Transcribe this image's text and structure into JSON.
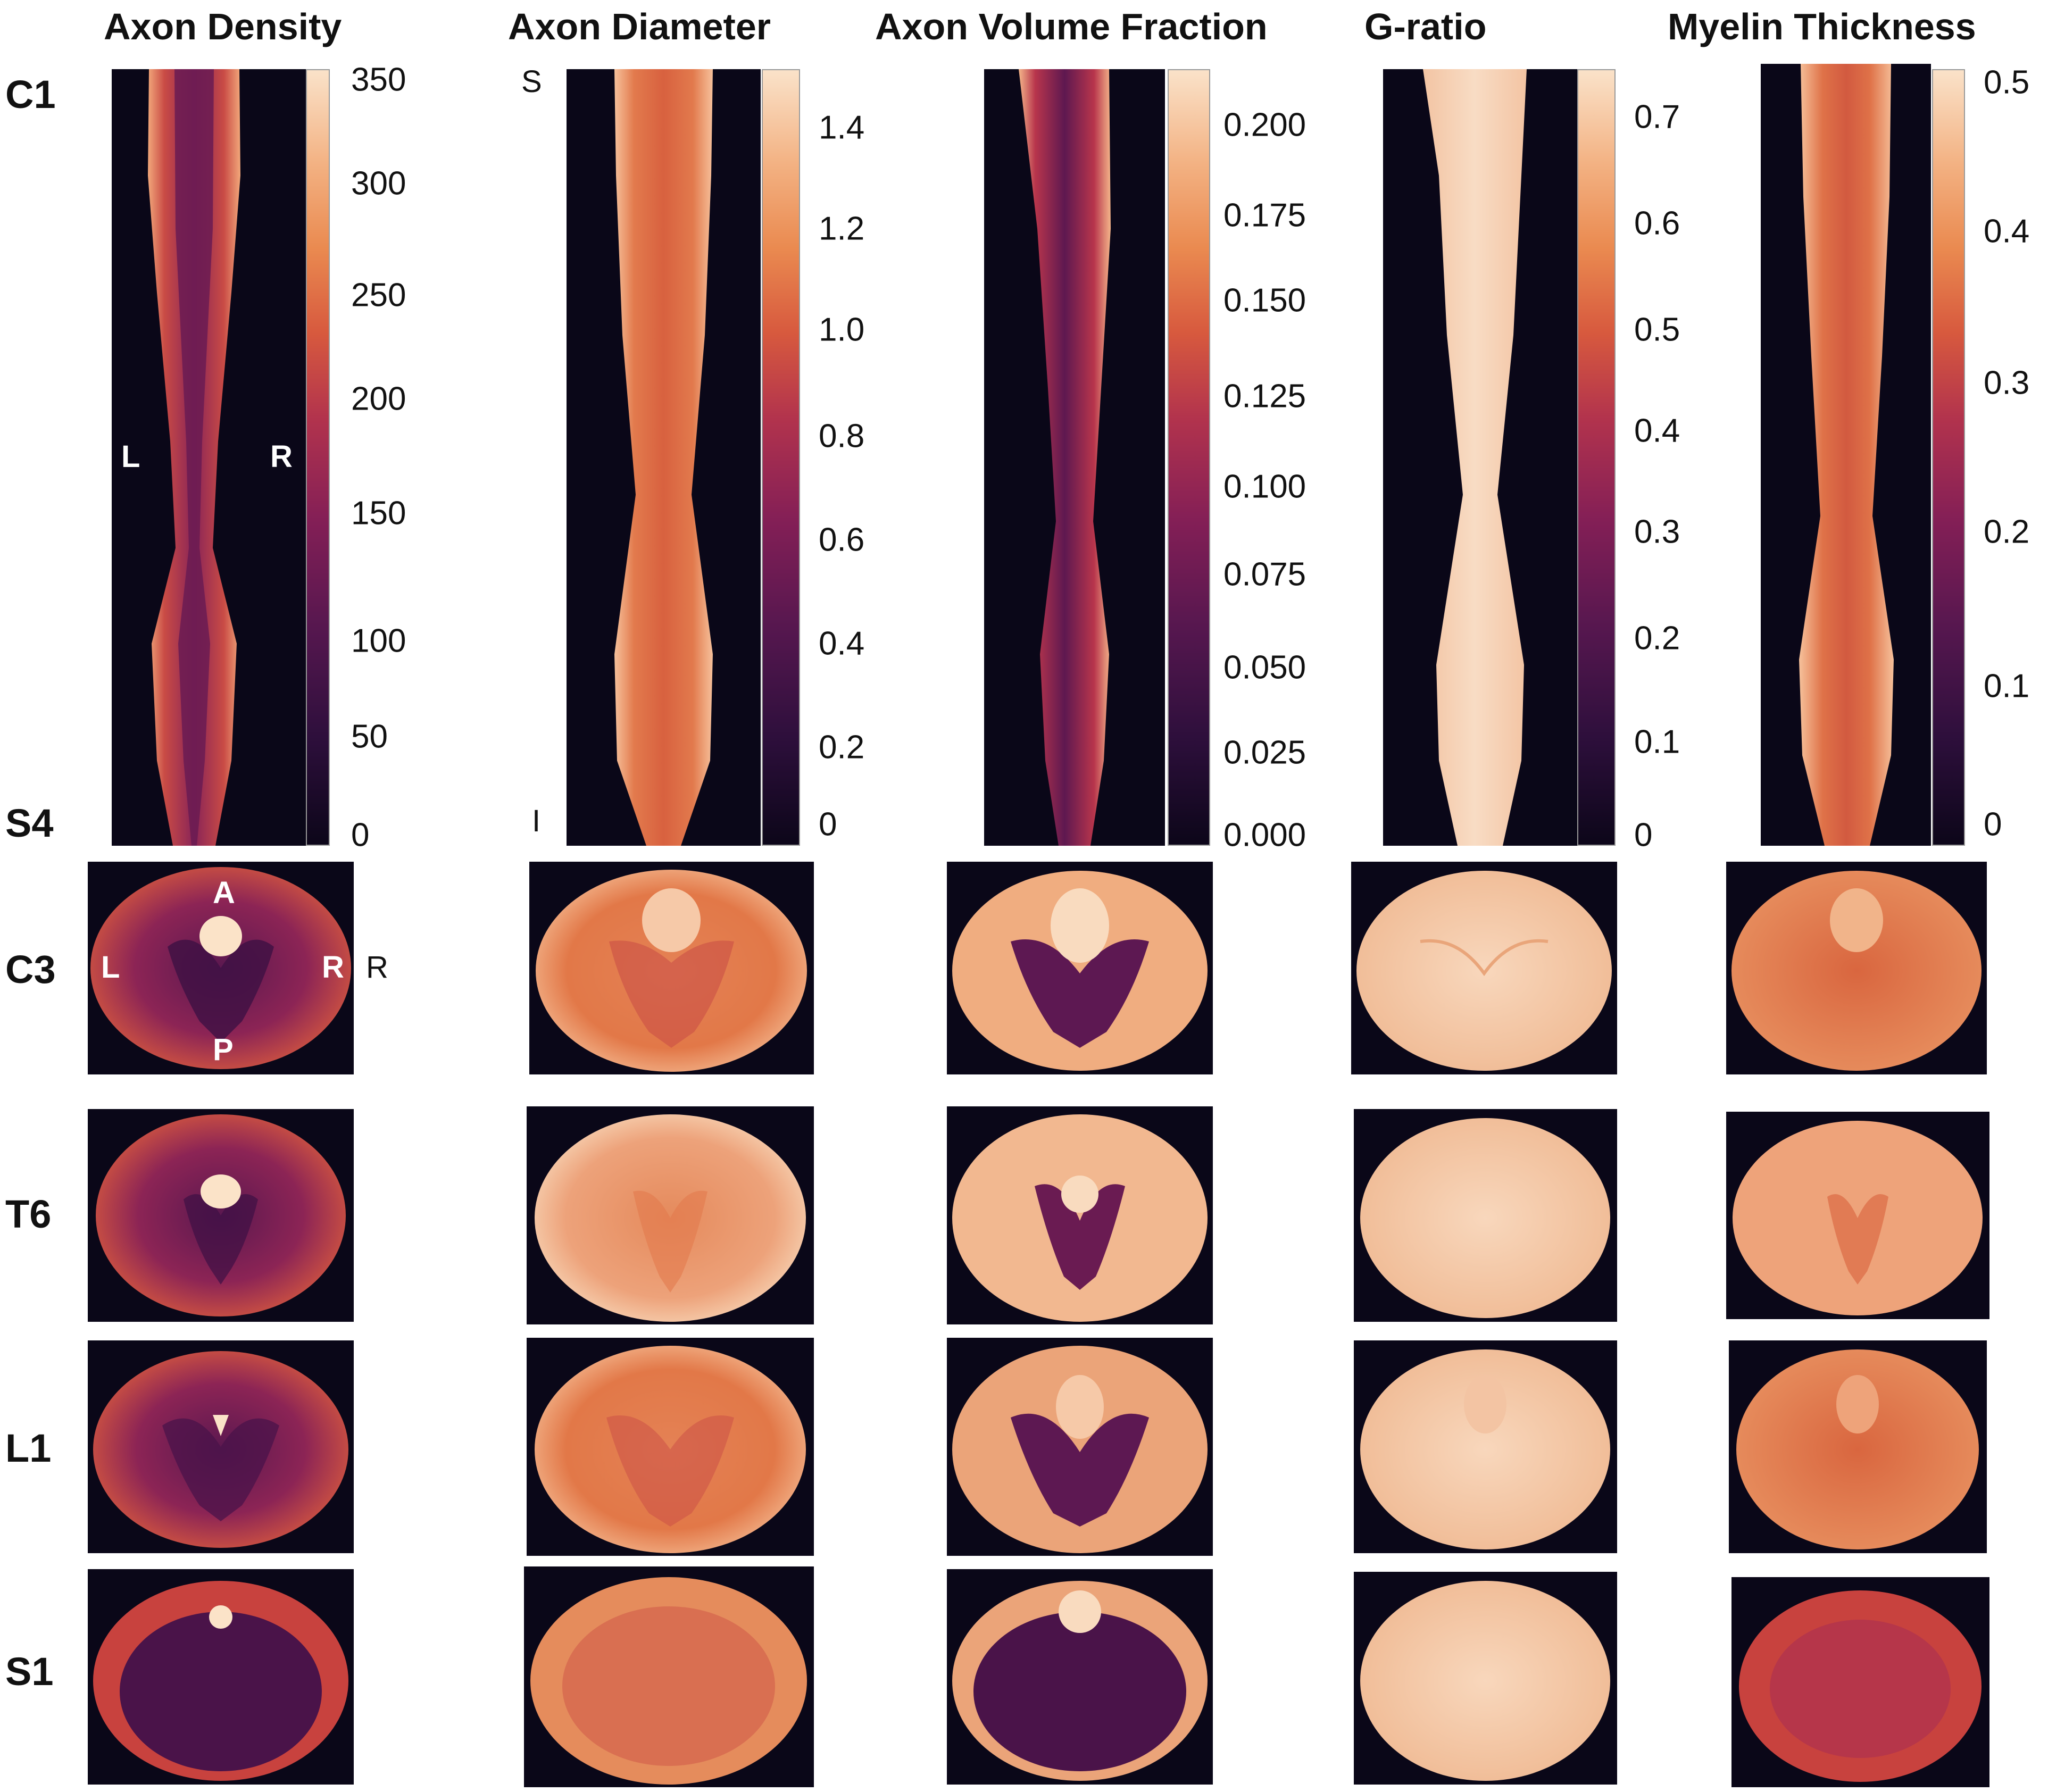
{
  "columns": [
    {
      "title": "Axon Density",
      "ticks": [
        "350",
        "300",
        "250",
        "200",
        "150",
        "100",
        "50",
        "0"
      ]
    },
    {
      "title": "Axon Diameter",
      "ticks": [
        "1.4",
        "1.2",
        "1.0",
        "0.8",
        "0.6",
        "0.4",
        "0.2",
        "0"
      ]
    },
    {
      "title": "Axon Volume Fraction",
      "ticks": [
        "0.200",
        "0.175",
        "0.150",
        "0.125",
        "0.100",
        "0.075",
        "0.050",
        "0.025",
        "0.000"
      ]
    },
    {
      "title": "G-ratio",
      "ticks": [
        "0.7",
        "0.6",
        "0.5",
        "0.4",
        "0.3",
        "0.2",
        "0.1",
        "0"
      ]
    },
    {
      "title": "Myelin Thickness",
      "ticks": [
        "0.5",
        "0.4",
        "0.3",
        "0.2",
        "0.1",
        "0"
      ]
    }
  ],
  "rows": {
    "top_label": "C1",
    "bottom_label": "S4",
    "axial_labels": [
      "C3",
      "T6",
      "L1",
      "S1"
    ]
  },
  "orientation": {
    "left": "L",
    "right": "R",
    "anterior": "A",
    "posterior": "P",
    "superior": "S",
    "inferior": "I",
    "outside_right": "R"
  },
  "colors": {
    "background": "#0a0718",
    "colormap": [
      "#0c0619",
      "#56174f",
      "#b2334d",
      "#ea8a50",
      "#fae2c9"
    ]
  }
}
